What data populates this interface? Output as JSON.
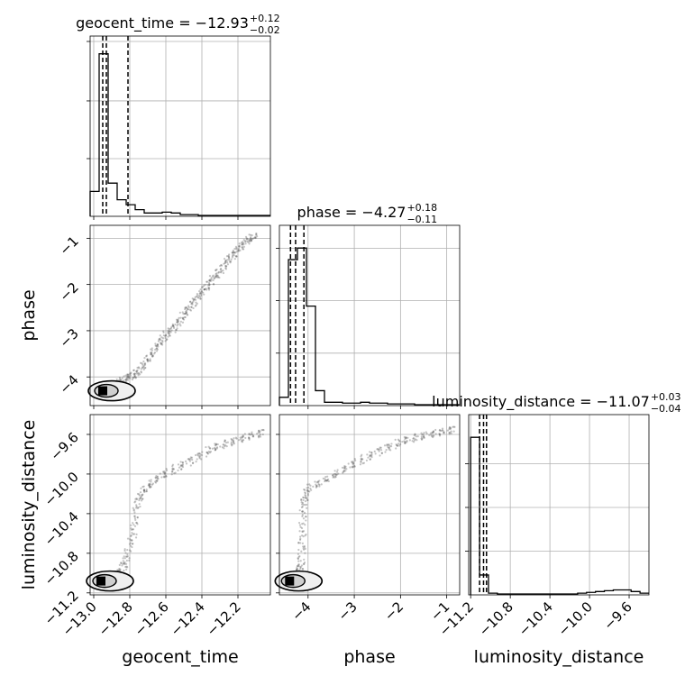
{
  "chart_data": {
    "type": "corner",
    "parameters": [
      {
        "name": "geocent_time",
        "label": "geocent_time",
        "title": "geocent_time = −12.93",
        "title_sup": "+0.12",
        "title_sub": "−0.02",
        "range": [
          -13.02,
          -12.02
        ],
        "ticks": [
          -13.0,
          -12.8,
          -12.6,
          -12.4,
          -12.2
        ],
        "tick_labels": [
          "−13.0",
          "−12.8",
          "−12.6",
          "−12.4",
          "−12.2"
        ],
        "quantiles": [
          -12.95,
          -12.93,
          -12.81
        ],
        "hist": [
          0.15,
          0.98,
          0.2,
          0.1,
          0.07,
          0.04,
          0.02,
          0.02,
          0.025,
          0.02,
          0.01,
          0.01,
          0.005,
          0.005,
          0.005,
          0.005,
          0.005,
          0.005,
          0.005,
          0.005
        ],
        "hist_range": [
          -13.02,
          -12.02
        ],
        "hist_ticks": [
          0.33,
          0.66,
          1.0
        ]
      },
      {
        "name": "phase",
        "label": "phase",
        "title": "phase = −4.27",
        "title_sup": "+0.18",
        "title_sub": "−0.11",
        "range": [
          -4.62,
          -0.72
        ],
        "ticks": [
          -4,
          -3,
          -2,
          -1
        ],
        "tick_labels": [
          "−4",
          "−3",
          "−2",
          "−1"
        ],
        "quantiles": [
          -4.38,
          -4.27,
          -4.09
        ],
        "hist": [
          0.05,
          0.88,
          0.95,
          0.6,
          0.09,
          0.02,
          0.02,
          0.015,
          0.015,
          0.02,
          0.015,
          0.015,
          0.01,
          0.01,
          0.01,
          0.005,
          0.005,
          0.005,
          0.005,
          0.005
        ],
        "hist_range": [
          -4.62,
          -0.72
        ],
        "hist_ticks": [
          0.3,
          0.6,
          0.9
        ]
      },
      {
        "name": "luminosity_distance",
        "label": "luminosity_distance",
        "title": "luminosity_distance = −11.07",
        "title_sup": "+0.03",
        "title_sub": "−0.04",
        "range": [
          -11.22,
          -9.4
        ],
        "ticks": [
          -11.2,
          -10.8,
          -10.4,
          -10.0,
          -9.6
        ],
        "tick_labels": [
          "−11.2",
          "−10.8",
          "−10.4",
          "−10.0",
          "−9.6"
        ],
        "quantiles": [
          -11.11,
          -11.07,
          -11.04
        ],
        "hist": [
          0.95,
          0.12,
          0.01,
          0.005,
          0.005,
          0.005,
          0.005,
          0.005,
          0.005,
          0.005,
          0.005,
          0.005,
          0.01,
          0.015,
          0.02,
          0.025,
          0.03,
          0.03,
          0.02,
          0.01
        ],
        "hist_range": [
          -11.2,
          -9.4
        ],
        "hist_ticks": [
          0.25,
          0.5,
          0.75
        ]
      }
    ],
    "scatter": {
      "geocent_time_vs_phase": [
        [
          -12.95,
          -4.3
        ],
        [
          -12.93,
          -4.25
        ],
        [
          -12.97,
          -4.35
        ],
        [
          -12.9,
          -4.2
        ],
        [
          -12.85,
          -4.1
        ],
        [
          -12.8,
          -4.0
        ],
        [
          -12.75,
          -3.9
        ],
        [
          -12.7,
          -3.6
        ],
        [
          -12.65,
          -3.35
        ],
        [
          -12.6,
          -3.1
        ],
        [
          -12.55,
          -2.9
        ],
        [
          -12.5,
          -2.65
        ],
        [
          -12.45,
          -2.4
        ],
        [
          -12.4,
          -2.15
        ],
        [
          -12.35,
          -1.95
        ],
        [
          -12.3,
          -1.7
        ],
        [
          -12.25,
          -1.45
        ],
        [
          -12.2,
          -1.25
        ],
        [
          -12.15,
          -1.05
        ],
        [
          -12.1,
          -0.95
        ]
      ],
      "geocent_time_vs_luminosity_distance": [
        [
          -12.96,
          -11.08
        ],
        [
          -12.93,
          -11.06
        ],
        [
          -12.9,
          -11.02
        ],
        [
          -12.85,
          -11.0
        ],
        [
          -12.82,
          -10.85
        ],
        [
          -12.78,
          -10.6
        ],
        [
          -12.76,
          -10.3
        ],
        [
          -12.72,
          -10.15
        ],
        [
          -12.65,
          -10.05
        ],
        [
          -12.55,
          -9.95
        ],
        [
          -12.45,
          -9.85
        ],
        [
          -12.35,
          -9.75
        ],
        [
          -12.25,
          -9.68
        ],
        [
          -12.15,
          -9.62
        ],
        [
          -12.05,
          -9.58
        ]
      ],
      "phase_vs_luminosity_distance": [
        [
          -4.4,
          -11.08
        ],
        [
          -4.3,
          -11.06
        ],
        [
          -4.2,
          -11.02
        ],
        [
          -4.15,
          -10.9
        ],
        [
          -4.12,
          -10.6
        ],
        [
          -4.1,
          -10.3
        ],
        [
          -4.0,
          -10.15
        ],
        [
          -3.6,
          -10.05
        ],
        [
          -3.2,
          -9.95
        ],
        [
          -2.8,
          -9.85
        ],
        [
          -2.4,
          -9.75
        ],
        [
          -2.0,
          -9.68
        ],
        [
          -1.6,
          -9.62
        ],
        [
          -1.2,
          -9.58
        ],
        [
          -0.8,
          -9.55
        ]
      ]
    },
    "grid": true
  }
}
